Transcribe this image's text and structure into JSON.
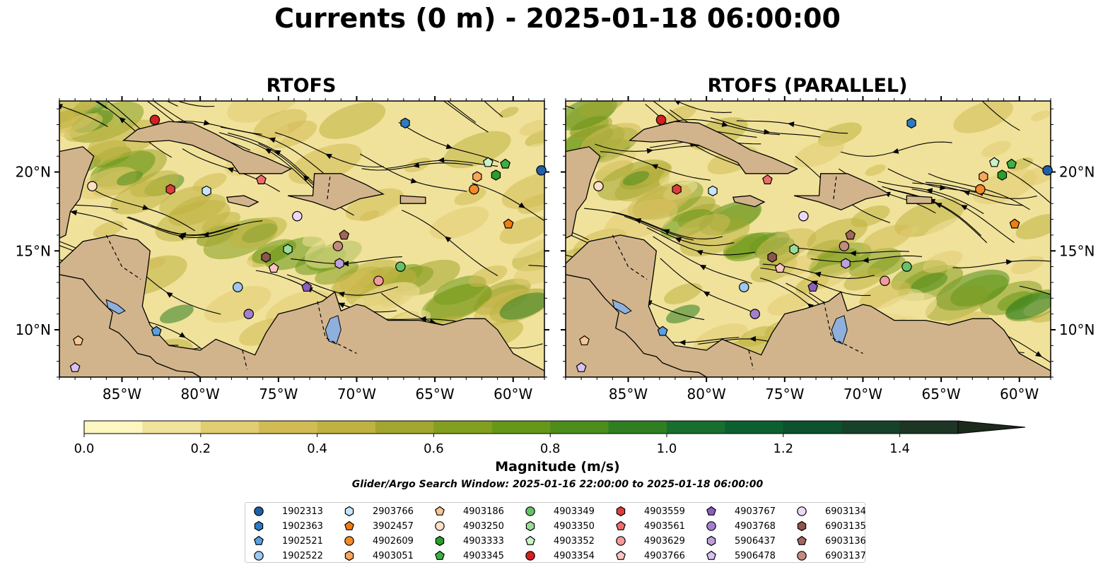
{
  "title": "Currents (0 m) - 2025-01-18 06:00:00",
  "panels": [
    {
      "title": "RTOFS"
    },
    {
      "title": "RTOFS (PARALLEL)"
    }
  ],
  "colors": {
    "land": "#d2b48c",
    "lake": "#8fb0dc",
    "colormap": [
      "#fdf6c0",
      "#f0e29a",
      "#e1cc72",
      "#d2bb55",
      "#bfb241",
      "#a2a630",
      "#839f20",
      "#679718",
      "#4c8d1c",
      "#2f7e22",
      "#176e2e",
      "#0c6030",
      "#0d512e",
      "#16422a",
      "#1c3524",
      "#1c2a1c"
    ]
  },
  "chart_data": {
    "type": "heatmap",
    "variable": "Currents (0 m)",
    "datetime": "2025-01-18 06:00:00",
    "xlim": [
      -89.0,
      -58.0
    ],
    "ylim": [
      7.0,
      24.5
    ],
    "x_ticks": [
      "85°W",
      "80°W",
      "75°W",
      "70°W",
      "65°W",
      "60°W"
    ],
    "x_tick_values": [
      -85,
      -80,
      -75,
      -70,
      -65,
      -60
    ],
    "y_ticks": [
      "10°N",
      "15°N",
      "20°N"
    ],
    "y_tick_values": [
      10,
      15,
      20
    ],
    "colorbar": {
      "label": "Magnitude (m/s)",
      "range": [
        0.0,
        1.5
      ],
      "extend": "max",
      "tick_labels": [
        "0.0",
        "0.2",
        "0.4",
        "0.6",
        "0.8",
        "1.0",
        "1.2",
        "1.4"
      ],
      "tick_values": [
        0.0,
        0.2,
        0.4,
        0.6,
        0.8,
        1.0,
        1.2,
        1.4
      ],
      "levels": [
        0.0,
        0.1,
        0.2,
        0.3,
        0.4,
        0.5,
        0.6,
        0.7,
        0.8,
        0.9,
        1.0,
        1.1,
        1.2,
        1.3,
        1.4,
        1.5
      ]
    },
    "search_window": "Glider/Argo Search Window: 2025-01-16 22:00:00 to 2025-01-18 06:00:00",
    "platforms": [
      {
        "id": "1902313",
        "marker": "circle",
        "color": "#1f5fa8",
        "lon": -58.2,
        "lat": 20.1
      },
      {
        "id": "1902363",
        "marker": "hexagon",
        "color": "#2c7bc4",
        "lon": -66.9,
        "lat": 23.1
      },
      {
        "id": "1902521",
        "marker": "pentagon",
        "color": "#5b9fe0",
        "lon": -82.8,
        "lat": 9.9
      },
      {
        "id": "1902522",
        "marker": "circle",
        "color": "#9ec8ee",
        "lon": -77.6,
        "lat": 12.7
      },
      {
        "id": "2903766",
        "marker": "hexagon",
        "color": "#c6e6fb",
        "lon": -79.6,
        "lat": 18.8
      },
      {
        "id": "3902457",
        "marker": "pentagon",
        "color": "#f07d12",
        "lon": -60.3,
        "lat": 16.7
      },
      {
        "id": "4902609",
        "marker": "circle",
        "color": "#f58a2a",
        "lon": -62.5,
        "lat": 18.9
      },
      {
        "id": "4903051",
        "marker": "hexagon",
        "color": "#f9a65a",
        "lon": -62.3,
        "lat": 19.7
      },
      {
        "id": "4903186",
        "marker": "pentagon",
        "color": "#fbc590",
        "lon": -87.8,
        "lat": 9.3
      },
      {
        "id": "4903250",
        "marker": "circle",
        "color": "#fde0c4",
        "lon": -86.9,
        "lat": 19.1
      },
      {
        "id": "4903333",
        "marker": "hexagon",
        "color": "#2a9d2a",
        "lon": -61.1,
        "lat": 19.8
      },
      {
        "id": "4903345",
        "marker": "pentagon",
        "color": "#3cb043",
        "lon": -60.5,
        "lat": 20.5
      },
      {
        "id": "4903349",
        "marker": "circle",
        "color": "#66c266",
        "lon": -67.2,
        "lat": 14.0
      },
      {
        "id": "4903350",
        "marker": "hexagon",
        "color": "#99dc99",
        "lon": -74.4,
        "lat": 15.1
      },
      {
        "id": "4903352",
        "marker": "pentagon",
        "color": "#c9f2c9",
        "lon": -61.6,
        "lat": 20.6
      },
      {
        "id": "4903354",
        "marker": "circle",
        "color": "#d42020",
        "lon": -82.9,
        "lat": 23.3
      },
      {
        "id": "4903559",
        "marker": "hexagon",
        "color": "#e03c3c",
        "lon": -81.9,
        "lat": 18.9
      },
      {
        "id": "4903561",
        "marker": "pentagon",
        "color": "#ee6e6e",
        "lon": -76.1,
        "lat": 19.5
      },
      {
        "id": "4903629",
        "marker": "circle",
        "color": "#f59a9a",
        "lon": -68.6,
        "lat": 13.1
      },
      {
        "id": "4903766",
        "marker": "pentagon",
        "color": "#fbc4c4",
        "lon": -75.3,
        "lat": 13.9
      },
      {
        "id": "4903767",
        "marker": "pentagon",
        "color": "#8b5fbf",
        "lon": -73.2,
        "lat": 12.7
      },
      {
        "id": "4903768",
        "marker": "circle",
        "color": "#a57fcf",
        "lon": -76.9,
        "lat": 11.0
      },
      {
        "id": "5906437",
        "marker": "hexagon",
        "color": "#bda0dd",
        "lon": -71.1,
        "lat": 14.2
      },
      {
        "id": "5906478",
        "marker": "pentagon",
        "color": "#d8c2ef",
        "lon": -88.0,
        "lat": 7.6
      },
      {
        "id": "6903134",
        "marker": "circle",
        "color": "#ecd8f6",
        "lon": -73.8,
        "lat": 17.2
      },
      {
        "id": "6903135",
        "marker": "hexagon",
        "color": "#8c564b",
        "lon": -75.8,
        "lat": 14.6
      },
      {
        "id": "6903136",
        "marker": "pentagon",
        "color": "#a0685a",
        "lon": -70.8,
        "lat": 16.0
      },
      {
        "id": "6903137",
        "marker": "circle",
        "color": "#c48a7e",
        "lon": -71.2,
        "lat": 15.3
      }
    ]
  }
}
